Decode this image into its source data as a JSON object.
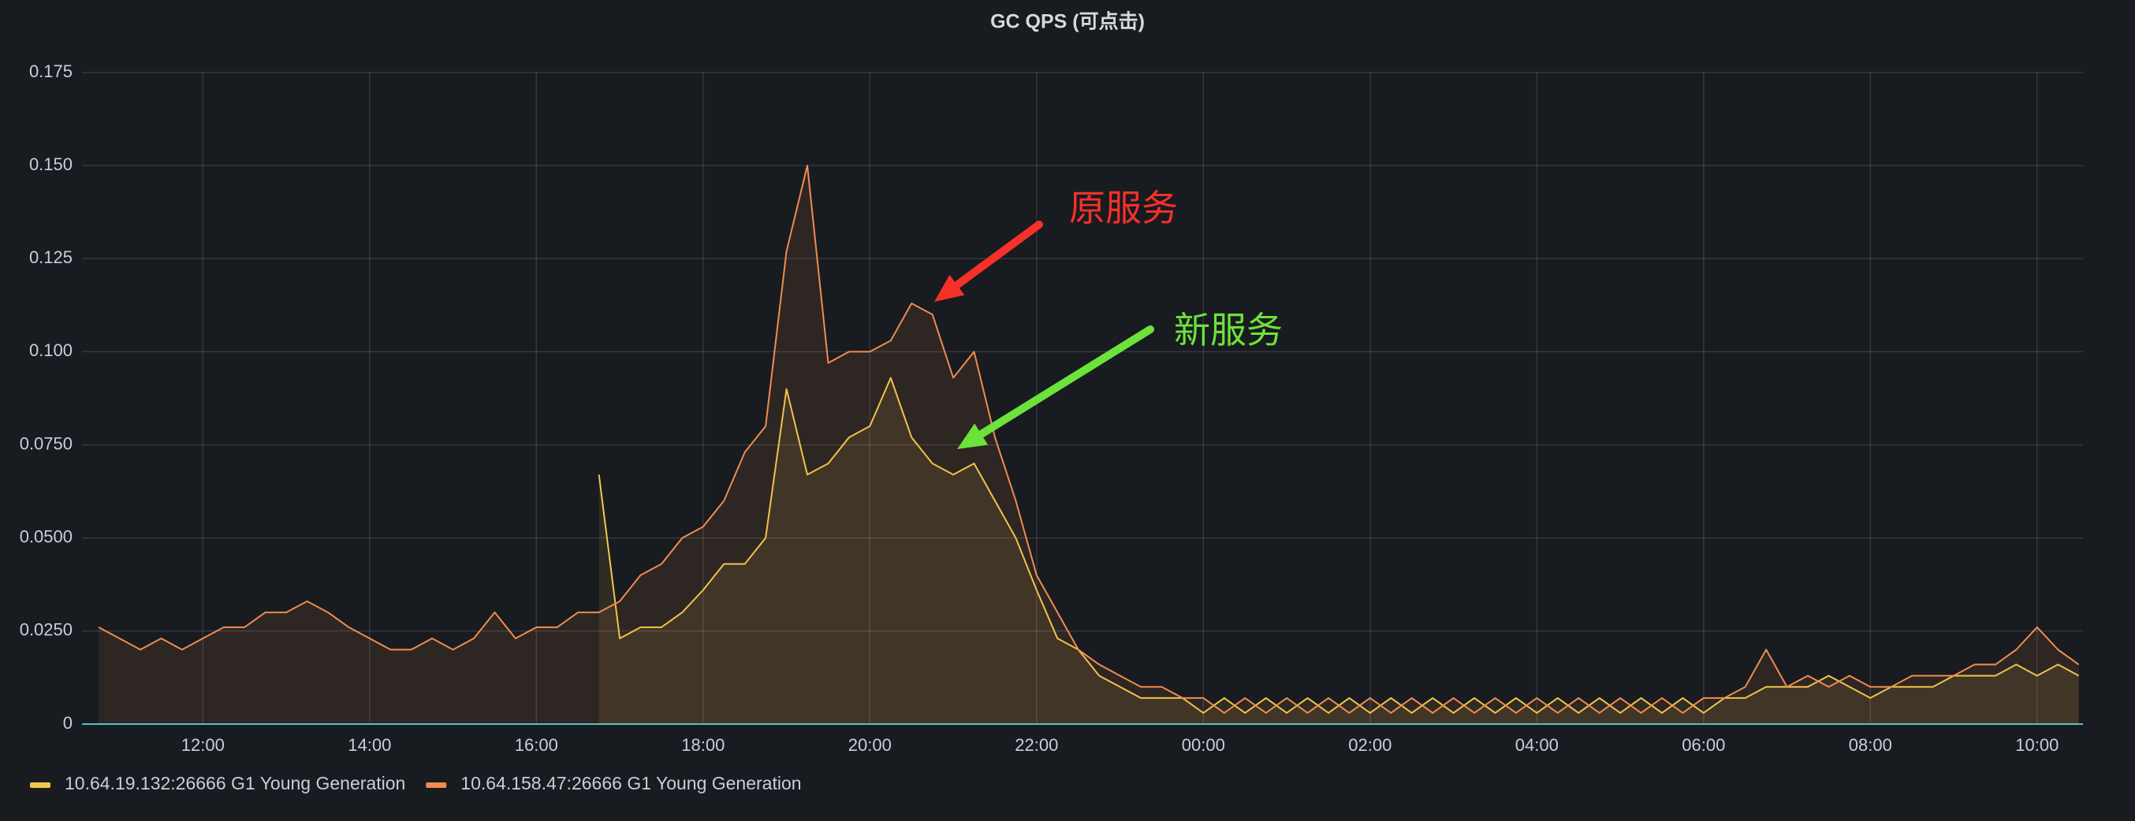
{
  "chart_data": {
    "type": "line",
    "title": "GC QPS (可点击)",
    "x": [
      10.75,
      11,
      11.25,
      11.5,
      11.75,
      12,
      12.25,
      12.5,
      12.75,
      13,
      13.25,
      13.5,
      13.75,
      14,
      14.25,
      14.5,
      14.75,
      15,
      15.25,
      15.5,
      15.75,
      16,
      16.25,
      16.5,
      16.75,
      17,
      17.25,
      17.5,
      17.75,
      18,
      18.25,
      18.5,
      18.75,
      19,
      19.25,
      19.5,
      19.75,
      20,
      20.25,
      20.5,
      20.75,
      21,
      21.25,
      21.5,
      21.75,
      22,
      22.25,
      22.5,
      22.75,
      23,
      23.25,
      23.5,
      23.75,
      24,
      24.25,
      24.5,
      24.75,
      25,
      25.25,
      25.5,
      25.75,
      26,
      26.25,
      26.5,
      26.75,
      27,
      27.25,
      27.5,
      27.75,
      28,
      28.25,
      28.5,
      28.75,
      29,
      29.25,
      29.5,
      29.75,
      30,
      30.25,
      30.5,
      30.75,
      31,
      31.25,
      31.5,
      31.75,
      32,
      32.25,
      32.5,
      32.75,
      33,
      33.25,
      33.5,
      33.75,
      34,
      34.25,
      34.5
    ],
    "series": [
      {
        "name": "10.64.19.132:26666 G1 Young Generation",
        "color": "#f2c84b",
        "values": [
          null,
          null,
          null,
          null,
          null,
          null,
          null,
          null,
          null,
          null,
          null,
          null,
          null,
          null,
          null,
          null,
          null,
          null,
          null,
          null,
          null,
          null,
          null,
          null,
          0.067,
          0.023,
          0.026,
          0.026,
          0.03,
          0.036,
          0.043,
          0.043,
          0.05,
          0.09,
          0.067,
          0.07,
          0.077,
          0.08,
          0.093,
          0.077,
          0.07,
          0.067,
          0.07,
          0.06,
          0.05,
          0.036,
          0.023,
          0.02,
          0.013,
          0.01,
          0.007,
          0.007,
          0.007,
          0.003,
          0.007,
          0.003,
          0.007,
          0.003,
          0.007,
          0.003,
          0.007,
          0.003,
          0.007,
          0.003,
          0.007,
          0.003,
          0.007,
          0.003,
          0.007,
          0.003,
          0.007,
          0.003,
          0.007,
          0.003,
          0.007,
          0.003,
          0.007,
          0.003,
          0.007,
          0.007,
          0.01,
          0.01,
          0.01,
          0.013,
          0.01,
          0.007,
          0.01,
          0.01,
          0.01,
          0.013,
          0.013,
          0.013,
          0.016,
          0.013,
          0.016,
          0.013
        ]
      },
      {
        "name": "10.64.158.47:26666 G1 Young Generation",
        "color": "#f08c50",
        "values": [
          0.026,
          0.023,
          0.02,
          0.023,
          0.02,
          0.023,
          0.026,
          0.026,
          0.03,
          0.03,
          0.033,
          0.03,
          0.026,
          0.023,
          0.02,
          0.02,
          0.023,
          0.02,
          0.023,
          0.03,
          0.023,
          0.026,
          0.026,
          0.03,
          0.03,
          0.033,
          0.04,
          0.043,
          0.05,
          0.053,
          0.06,
          0.073,
          0.08,
          0.127,
          0.15,
          0.097,
          0.1,
          0.1,
          0.103,
          0.113,
          0.11,
          0.093,
          0.1,
          0.077,
          0.06,
          0.04,
          0.03,
          0.02,
          0.016,
          0.013,
          0.01,
          0.01,
          0.007,
          0.007,
          0.003,
          0.007,
          0.003,
          0.007,
          0.003,
          0.007,
          0.003,
          0.007,
          0.003,
          0.007,
          0.003,
          0.007,
          0.003,
          0.007,
          0.003,
          0.007,
          0.003,
          0.007,
          0.003,
          0.007,
          0.003,
          0.007,
          0.003,
          0.007,
          0.007,
          0.01,
          0.02,
          0.01,
          0.013,
          0.01,
          0.013,
          0.01,
          0.01,
          0.013,
          0.013,
          0.013,
          0.016,
          0.016,
          0.02,
          0.026,
          0.02,
          0.016
        ]
      }
    ],
    "xlim": [
      10.55,
      34.55
    ],
    "xticks": [
      {
        "value": 12,
        "label": "12:00"
      },
      {
        "value": 14,
        "label": "14:00"
      },
      {
        "value": 16,
        "label": "16:00"
      },
      {
        "value": 18,
        "label": "18:00"
      },
      {
        "value": 20,
        "label": "20:00"
      },
      {
        "value": 22,
        "label": "22:00"
      },
      {
        "value": 24,
        "label": "00:00"
      },
      {
        "value": 26,
        "label": "02:00"
      },
      {
        "value": 28,
        "label": "04:00"
      },
      {
        "value": 30,
        "label": "06:00"
      },
      {
        "value": 32,
        "label": "08:00"
      },
      {
        "value": 34,
        "label": "10:00"
      }
    ],
    "ylim": [
      0,
      0.175
    ],
    "yticks": [
      0,
      {
        "value": 0.025,
        "label": "0.0250"
      },
      {
        "value": 0.05,
        "label": "0.0500"
      },
      {
        "value": 0.075,
        "label": "0.0750"
      },
      {
        "value": 0.1,
        "label": "0.100"
      },
      0.125,
      {
        "value": 0.15,
        "label": "0.150"
      },
      0.175
    ],
    "grid": true,
    "legend": "bottom-left",
    "annotations": [
      {
        "text": "原服务",
        "color": "#f5312a"
      },
      {
        "text": "新服务",
        "color": "#6ce23a"
      }
    ]
  }
}
